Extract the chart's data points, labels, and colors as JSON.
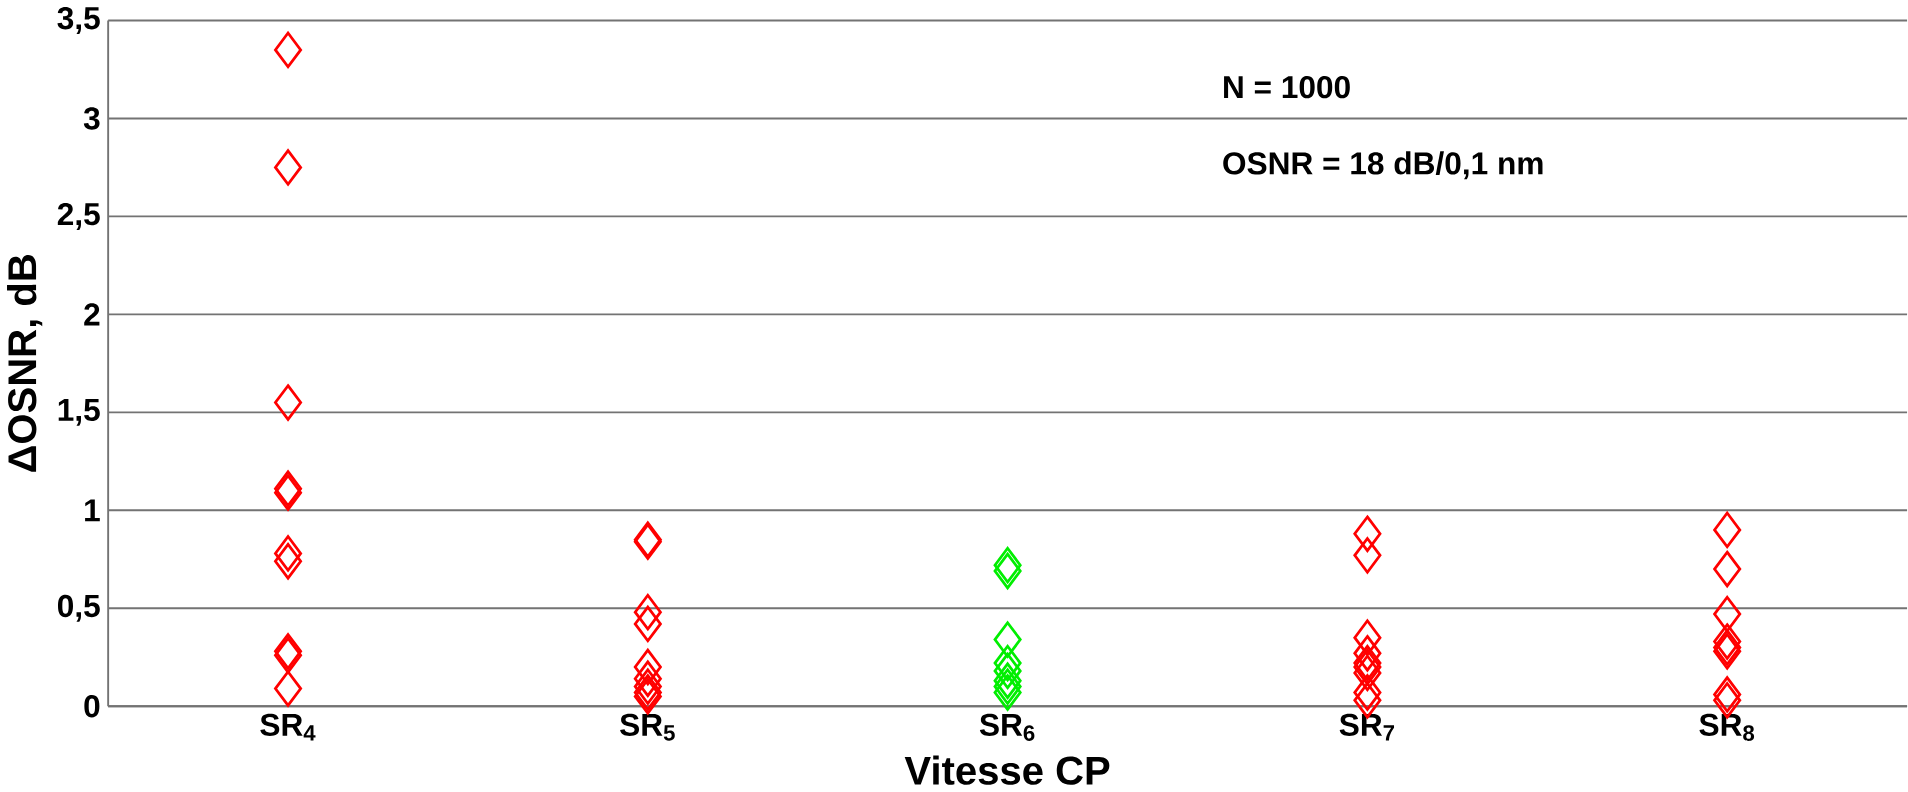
{
  "chart_data": {
    "type": "scatter",
    "categories": [
      "SR$_{4}$",
      "SR$_{5}$",
      "SR$_{6}$",
      "SR$_{7}$",
      "SR$_{8}$"
    ],
    "series": [
      {
        "color": "#ff0000",
        "x": [
          "SR$_{4}$",
          "SR$_{4}$",
          "SR$_{4}$",
          "SR$_{4}$",
          "SR$_{4}$",
          "SR$_{4}$",
          "SR$_{4}$",
          "SR$_{4}$",
          "SR$_{4}$",
          "SR$_{4}$",
          "SR$_{5}$",
          "SR$_{5}$",
          "SR$_{5}$",
          "SR$_{5}$",
          "SR$_{5}$",
          "SR$_{5}$",
          "SR$_{5}$",
          "SR$_{5}$",
          "SR$_{5}$",
          "SR$_{7}$",
          "SR$_{7}$",
          "SR$_{7}$",
          "SR$_{7}$",
          "SR$_{7}$",
          "SR$_{7}$",
          "SR$_{7}$",
          "SR$_{7}$",
          "SR$_{7}$",
          "SR$_{8}$",
          "SR$_{8}$",
          "SR$_{8}$",
          "SR$_{8}$",
          "SR$_{8}$",
          "SR$_{8}$",
          "SR$_{8}$",
          "SR$_{8}$"
        ],
        "values": [
          3.35,
          2.75,
          1.55,
          1.11,
          1.09,
          0.78,
          0.74,
          0.28,
          0.26,
          0.09,
          0.85,
          0.84,
          0.48,
          0.42,
          0.2,
          0.14,
          0.1,
          0.07,
          0.05,
          0.88,
          0.77,
          0.35,
          0.27,
          0.22,
          0.2,
          0.17,
          0.07,
          0.03,
          0.9,
          0.7,
          0.47,
          0.33,
          0.3,
          0.28,
          0.06,
          0.03
        ]
      },
      {
        "color": "#00ee00",
        "x": [
          "SR$_{6}$",
          "SR$_{6}$",
          "SR$_{6}$",
          "SR$_{6}$",
          "SR$_{6}$",
          "SR$_{6}$",
          "SR$_{6}$",
          "SR$_{6}$"
        ],
        "values": [
          0.72,
          0.69,
          0.34,
          0.22,
          0.18,
          0.13,
          0.1,
          0.07
        ]
      }
    ],
    "xlabel": "Vitesse CP",
    "ylabel": "ΔOSNR, dB",
    "ylim": [
      0,
      3.5
    ],
    "yticks": [
      0,
      {
        "value": 0.5,
        "label": "0,5"
      },
      1,
      {
        "value": 1.5,
        "label": "1,5"
      },
      2,
      {
        "value": 2.5,
        "label": "2,5"
      },
      3,
      {
        "value": 3.5,
        "label": "3,5"
      }
    ],
    "grid": "y",
    "marker": "diamond",
    "annotations": [
      "N = 1000",
      "OSNR = 18 dB/0,1 nm"
    ]
  }
}
